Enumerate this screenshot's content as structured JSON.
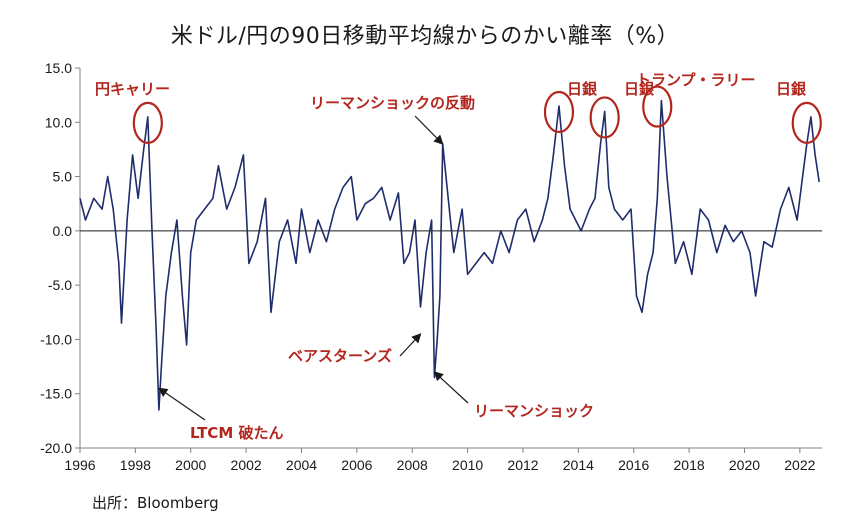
{
  "chart_data": {
    "type": "line",
    "title": "米ドル/円の90日移動平均線からのかい離率（%）",
    "source": "出所：Bloomberg",
    "xlabel": "",
    "ylabel": "",
    "xlim": [
      1996,
      2022.8
    ],
    "ylim": [
      -20,
      15
    ],
    "y_ticks": [
      "15.0",
      "10.0",
      "5.0",
      "0.0",
      "-5.0",
      "-10.0",
      "-15.0",
      "-20.0"
    ],
    "x_ticks": [
      "1996",
      "1998",
      "2000",
      "2002",
      "2004",
      "2006",
      "2008",
      "2010",
      "2012",
      "2014",
      "2016",
      "2018",
      "2020",
      "2022"
    ],
    "grid": false,
    "line_color": "#1f2d6b",
    "annotation_color": "#b3261e",
    "series": [
      {
        "x": [
          1996.0,
          1996.2,
          1996.5,
          1996.8,
          1997.0,
          1997.2,
          1997.4,
          1997.5,
          1997.7,
          1997.9,
          1998.1,
          1998.3,
          1998.45,
          1998.6,
          1998.75,
          1998.85,
          1998.95,
          1999.1,
          1999.3,
          1999.5,
          1999.7,
          1999.85,
          2000.0,
          2000.2,
          2000.5,
          2000.8,
          2001.0,
          2001.3,
          2001.6,
          2001.9,
          2002.1,
          2002.4,
          2002.7,
          2002.9,
          2003.2,
          2003.5,
          2003.8,
          2004.0,
          2004.3,
          2004.6,
          2004.9,
          2005.2,
          2005.5,
          2005.8,
          2006.0,
          2006.3,
          2006.6,
          2006.9,
          2007.2,
          2007.5,
          2007.7,
          2007.9,
          2008.1,
          2008.3,
          2008.5,
          2008.7,
          2008.8,
          2008.9,
          2009.0,
          2009.1,
          2009.3,
          2009.5,
          2009.8,
          2010.0,
          2010.3,
          2010.6,
          2010.9,
          2011.2,
          2011.5,
          2011.8,
          2012.1,
          2012.4,
          2012.7,
          2012.9,
          2013.1,
          2013.3,
          2013.5,
          2013.7,
          2013.9,
          2014.1,
          2014.4,
          2014.6,
          2014.8,
          2014.95,
          2015.1,
          2015.3,
          2015.6,
          2015.9,
          2016.1,
          2016.3,
          2016.5,
          2016.7,
          2016.85,
          2017.0,
          2017.2,
          2017.5,
          2017.8,
          2018.1,
          2018.4,
          2018.7,
          2019.0,
          2019.3,
          2019.6,
          2019.9,
          2020.2,
          2020.4,
          2020.7,
          2021.0,
          2021.3,
          2021.6,
          2021.9,
          2022.1,
          2022.25,
          2022.4,
          2022.55,
          2022.7
        ],
        "y": [
          3.0,
          1.0,
          3.0,
          2.0,
          5.0,
          2.0,
          -3.0,
          -8.5,
          1.0,
          7.0,
          3.0,
          7.5,
          10.5,
          0.0,
          -9.0,
          -16.5,
          -12.0,
          -6.0,
          -2.0,
          1.0,
          -6.0,
          -10.5,
          -2.0,
          1.0,
          2.0,
          3.0,
          6.0,
          2.0,
          4.0,
          7.0,
          -3.0,
          -1.0,
          3.0,
          -7.5,
          -1.0,
          1.0,
          -3.0,
          2.0,
          -2.0,
          1.0,
          -1.0,
          2.0,
          4.0,
          5.0,
          1.0,
          2.5,
          3.0,
          4.0,
          1.0,
          3.5,
          -3.0,
          -2.0,
          1.0,
          -7.0,
          -2.0,
          1.0,
          -13.5,
          -10.0,
          -6.0,
          8.0,
          3.0,
          -2.0,
          2.0,
          -4.0,
          -3.0,
          -2.0,
          -3.0,
          0.0,
          -2.0,
          1.0,
          2.0,
          -1.0,
          1.0,
          3.0,
          7.0,
          11.5,
          6.0,
          2.0,
          1.0,
          0.0,
          2.0,
          3.0,
          8.0,
          11.0,
          4.0,
          2.0,
          1.0,
          2.0,
          -6.0,
          -7.5,
          -4.0,
          -2.0,
          3.0,
          12.0,
          5.0,
          -3.0,
          -1.0,
          -4.0,
          2.0,
          1.0,
          -2.0,
          0.5,
          -1.0,
          0.0,
          -2.0,
          -6.0,
          -1.0,
          -1.5,
          2.0,
          4.0,
          1.0,
          5.0,
          8.0,
          10.5,
          7.0,
          4.5
        ]
      }
    ],
    "annotations": [
      {
        "label": "円キャリー",
        "x": 1998.45,
        "y": 10.5,
        "circled": true
      },
      {
        "label": "リーマンショックの反動",
        "x": 2009.1,
        "y": 8.0,
        "arrow": true
      },
      {
        "label": "日銀",
        "x": 2013.3,
        "y": 11.5,
        "circled": true
      },
      {
        "label": "日銀",
        "x": 2014.95,
        "y": 11.0,
        "circled": true
      },
      {
        "label": "トランプ・ラリー",
        "x": 2016.85,
        "y": 12.0,
        "circled": true
      },
      {
        "label": "日銀",
        "x": 2022.25,
        "y": 10.5,
        "circled": true
      },
      {
        "label": "ベアスターンズ",
        "x": 2008.3,
        "y": -9.5,
        "arrow": true
      },
      {
        "label": "LTCM 破たん",
        "x": 1998.85,
        "y": -14.5,
        "arrow": true
      },
      {
        "label": "リーマンショック",
        "x": 2008.8,
        "y": -13.0,
        "arrow": true
      }
    ]
  }
}
